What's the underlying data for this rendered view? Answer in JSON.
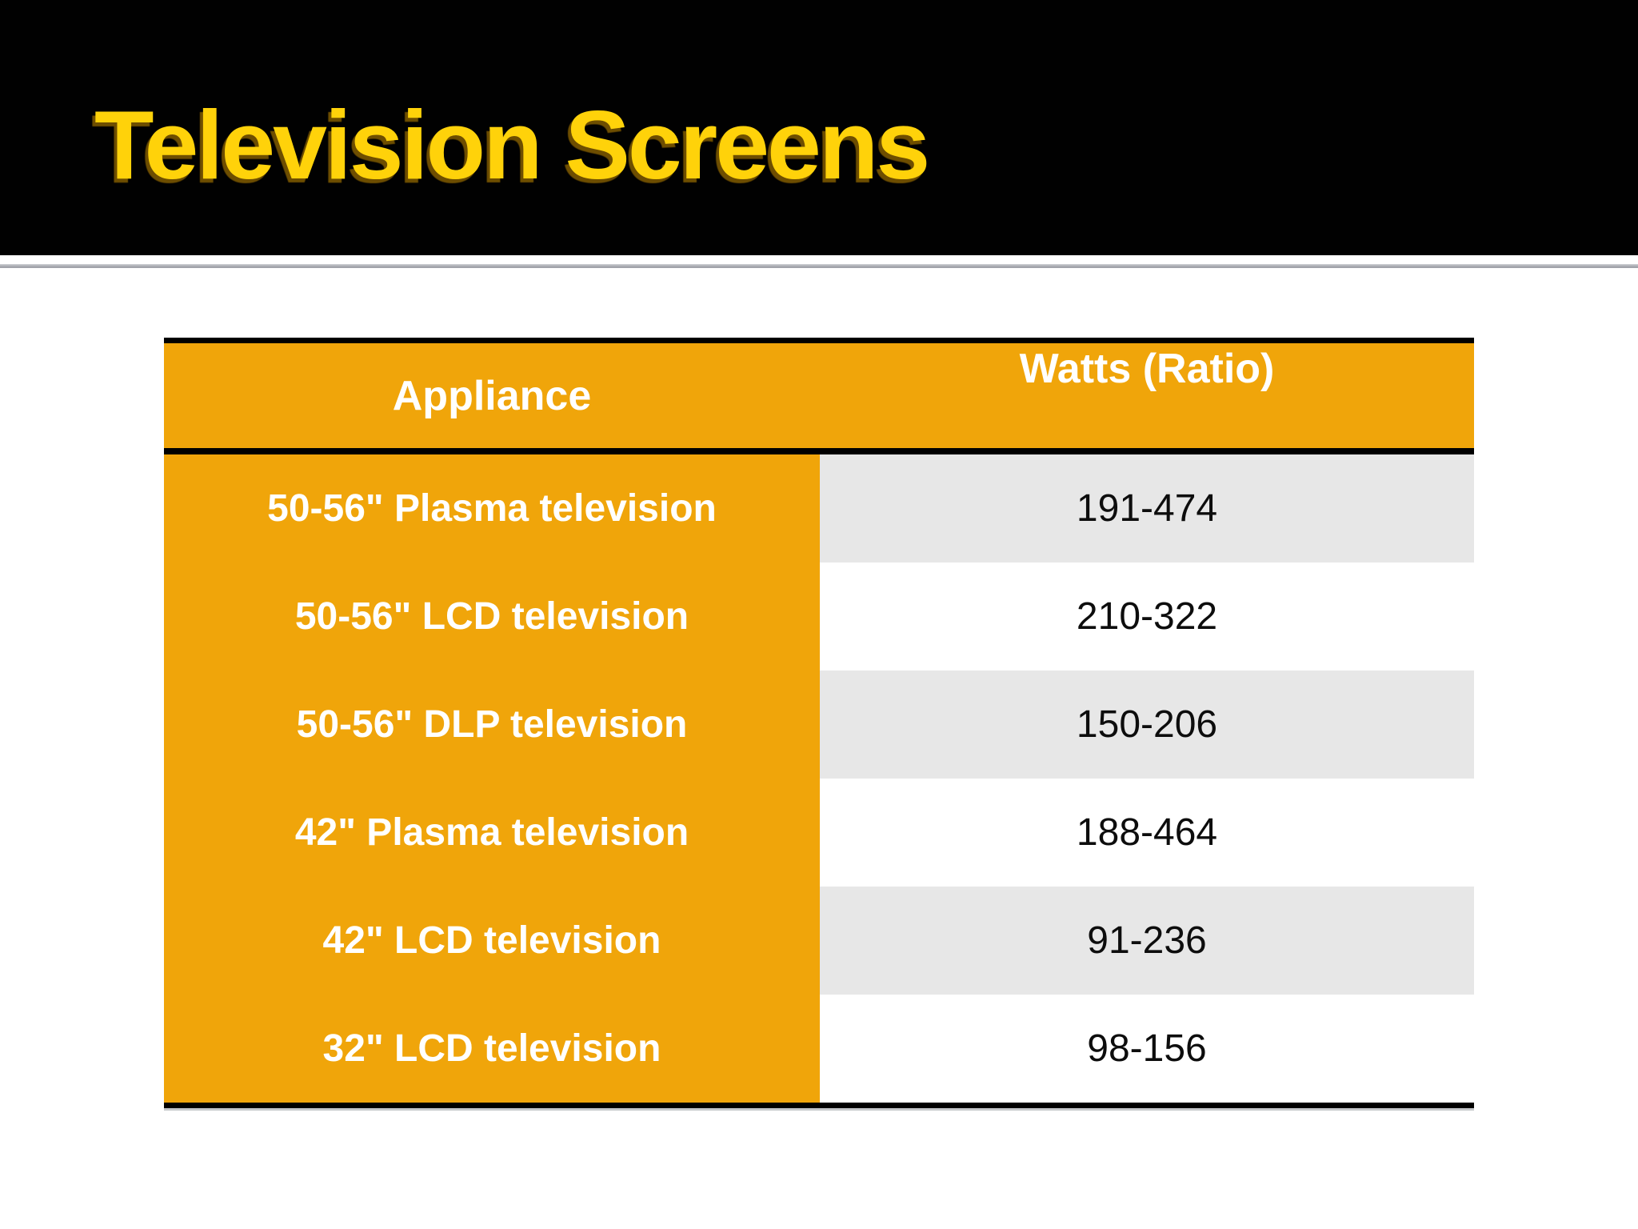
{
  "slide": {
    "title": "Television Screens"
  },
  "table": {
    "headers": [
      "Appliance",
      "Watts (Ratio)"
    ],
    "rows": [
      {
        "appliance": "50-56\" Plasma television",
        "watts": "191-474"
      },
      {
        "appliance": "50-56\" LCD television",
        "watts": "210-322"
      },
      {
        "appliance": "50-56\" DLP television",
        "watts": "150-206"
      },
      {
        "appliance": "42\" Plasma television",
        "watts": "188-464"
      },
      {
        "appliance": "42\" LCD television",
        "watts": "91-236"
      },
      {
        "appliance": "32\" LCD television",
        "watts": "98-156"
      }
    ]
  },
  "colors": {
    "accent_orange": "#F0A50A",
    "title_yellow": "#FFD20A",
    "title_shadow": "#6E4E00",
    "row_alt_gray": "#E7E7E7",
    "banner_black": "#010101",
    "divider_gray": "#9A9CA4"
  }
}
